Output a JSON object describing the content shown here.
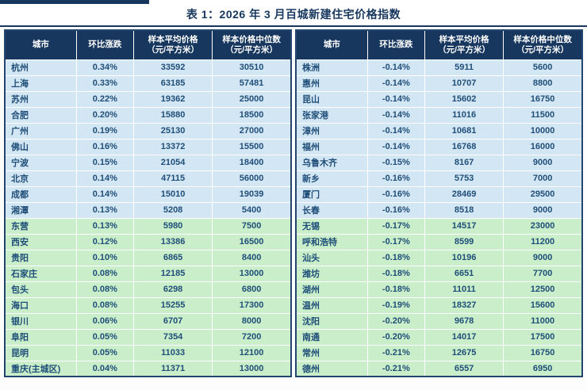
{
  "title": "表 1：2026 年 3 月百城新建住宅价格指数",
  "colors": {
    "accent": "#17375E",
    "header_bg": "#17375E",
    "blue_row": "#D3E6F3",
    "green_row": "#C9EEC9",
    "text": "#1F4E79"
  },
  "columns": [
    {
      "label": "城市",
      "sub": ""
    },
    {
      "label": "环比涨跌",
      "sub": ""
    },
    {
      "label": "样本平均价格",
      "sub": "（元/平方米）"
    },
    {
      "label": "样本价格中位数",
      "sub": "（元/平方米）"
    }
  ],
  "left_table": {
    "rows": [
      {
        "city": "杭州",
        "change": "0.34%",
        "avg": "33592",
        "median": "30510",
        "zone": "blue"
      },
      {
        "city": "上海",
        "change": "0.33%",
        "avg": "63185",
        "median": "57481",
        "zone": "blue"
      },
      {
        "city": "苏州",
        "change": "0.22%",
        "avg": "19362",
        "median": "25000",
        "zone": "blue"
      },
      {
        "city": "合肥",
        "change": "0.20%",
        "avg": "15880",
        "median": "18500",
        "zone": "blue"
      },
      {
        "city": "广州",
        "change": "0.19%",
        "avg": "25130",
        "median": "27000",
        "zone": "blue"
      },
      {
        "city": "佛山",
        "change": "0.16%",
        "avg": "13372",
        "median": "15500",
        "zone": "blue"
      },
      {
        "city": "宁波",
        "change": "0.15%",
        "avg": "21054",
        "median": "18400",
        "zone": "blue"
      },
      {
        "city": "北京",
        "change": "0.14%",
        "avg": "47115",
        "median": "56000",
        "zone": "blue"
      },
      {
        "city": "成都",
        "change": "0.14%",
        "avg": "15010",
        "median": "19039",
        "zone": "blue"
      },
      {
        "city": "湘潭",
        "change": "0.13%",
        "avg": "5208",
        "median": "5400",
        "zone": "blue"
      },
      {
        "city": "东营",
        "change": "0.13%",
        "avg": "5980",
        "median": "7500",
        "zone": "green"
      },
      {
        "city": "西安",
        "change": "0.12%",
        "avg": "13386",
        "median": "16500",
        "zone": "green"
      },
      {
        "city": "贵阳",
        "change": "0.10%",
        "avg": "6865",
        "median": "8400",
        "zone": "green"
      },
      {
        "city": "石家庄",
        "change": "0.08%",
        "avg": "12185",
        "median": "13000",
        "zone": "green"
      },
      {
        "city": "包头",
        "change": "0.08%",
        "avg": "6298",
        "median": "6800",
        "zone": "green"
      },
      {
        "city": "海口",
        "change": "0.08%",
        "avg": "15255",
        "median": "17300",
        "zone": "green"
      },
      {
        "city": "银川",
        "change": "0.06%",
        "avg": "6707",
        "median": "8000",
        "zone": "green"
      },
      {
        "city": "阜阳",
        "change": "0.05%",
        "avg": "7354",
        "median": "7200",
        "zone": "green"
      },
      {
        "city": "昆明",
        "change": "0.05%",
        "avg": "11033",
        "median": "12100",
        "zone": "green"
      },
      {
        "city": "重庆(主城区)",
        "change": "0.04%",
        "avg": "11371",
        "median": "13000",
        "zone": "green"
      }
    ]
  },
  "right_table": {
    "rows": [
      {
        "city": "株洲",
        "change": "-0.14%",
        "avg": "5911",
        "median": "5600",
        "zone": "blue"
      },
      {
        "city": "惠州",
        "change": "-0.14%",
        "avg": "10707",
        "median": "8800",
        "zone": "blue"
      },
      {
        "city": "昆山",
        "change": "-0.14%",
        "avg": "15602",
        "median": "16750",
        "zone": "blue"
      },
      {
        "city": "张家港",
        "change": "-0.14%",
        "avg": "11016",
        "median": "11500",
        "zone": "blue"
      },
      {
        "city": "漳州",
        "change": "-0.14%",
        "avg": "10681",
        "median": "10000",
        "zone": "blue"
      },
      {
        "city": "福州",
        "change": "-0.14%",
        "avg": "16768",
        "median": "16000",
        "zone": "blue"
      },
      {
        "city": "乌鲁木齐",
        "change": "-0.15%",
        "avg": "8167",
        "median": "9000",
        "zone": "blue"
      },
      {
        "city": "新乡",
        "change": "-0.16%",
        "avg": "5753",
        "median": "7000",
        "zone": "blue"
      },
      {
        "city": "厦门",
        "change": "-0.16%",
        "avg": "28469",
        "median": "29500",
        "zone": "blue"
      },
      {
        "city": "长春",
        "change": "-0.16%",
        "avg": "8518",
        "median": "9000",
        "zone": "blue"
      },
      {
        "city": "无锡",
        "change": "-0.17%",
        "avg": "14517",
        "median": "23000",
        "zone": "green"
      },
      {
        "city": "呼和浩特",
        "change": "-0.17%",
        "avg": "8599",
        "median": "11200",
        "zone": "green"
      },
      {
        "city": "汕头",
        "change": "-0.18%",
        "avg": "10196",
        "median": "9000",
        "zone": "green"
      },
      {
        "city": "潍坊",
        "change": "-0.18%",
        "avg": "6651",
        "median": "7700",
        "zone": "green"
      },
      {
        "city": "湖州",
        "change": "-0.18%",
        "avg": "11011",
        "median": "12500",
        "zone": "green"
      },
      {
        "city": "温州",
        "change": "-0.19%",
        "avg": "18327",
        "median": "15600",
        "zone": "green"
      },
      {
        "city": "沈阳",
        "change": "-0.20%",
        "avg": "9678",
        "median": "11000",
        "zone": "green"
      },
      {
        "city": "南通",
        "change": "-0.20%",
        "avg": "14017",
        "median": "17500",
        "zone": "green"
      },
      {
        "city": "常州",
        "change": "-0.21%",
        "avg": "12675",
        "median": "16750",
        "zone": "green"
      },
      {
        "city": "德州",
        "change": "-0.21%",
        "avg": "6557",
        "median": "6950",
        "zone": "green"
      }
    ]
  }
}
